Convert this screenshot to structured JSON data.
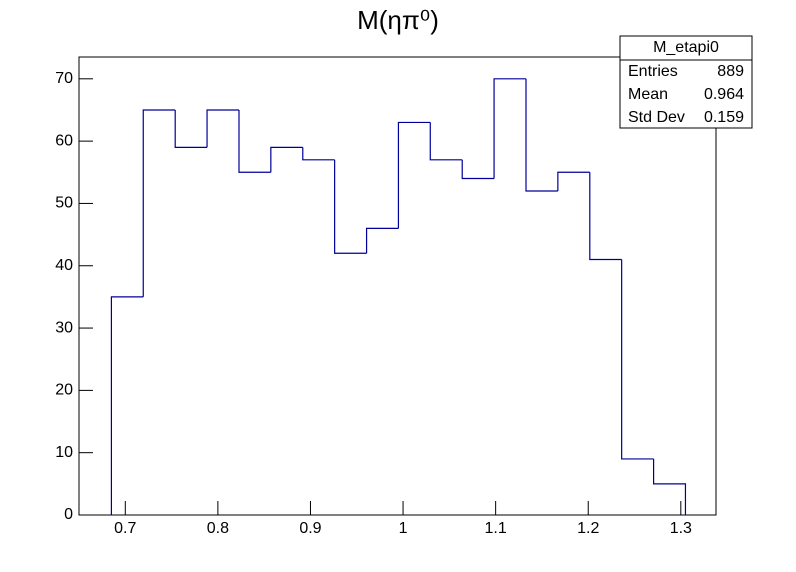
{
  "chart_data": {
    "type": "histogram",
    "title": "M(ηπ⁰)",
    "bins": [
      0.685,
      0.7194,
      0.7539,
      0.7883,
      0.8228,
      0.8572,
      0.8917,
      0.9261,
      0.9606,
      0.995,
      1.0294,
      1.0639,
      1.0983,
      1.1328,
      1.1672,
      1.2017,
      1.2361,
      1.2706,
      1.305
    ],
    "values": [
      35,
      65,
      59,
      65,
      55,
      59,
      57,
      42,
      46,
      63,
      57,
      54,
      70,
      52,
      55,
      41,
      9,
      5
    ],
    "color": "#000099",
    "xlim": [
      0.65,
      1.338
    ],
    "xticks": [
      0.7,
      0.8,
      0.9,
      1,
      1.1,
      1.2,
      1.3
    ],
    "ylim": [
      0,
      73.5
    ],
    "yticks": [
      0,
      10,
      20,
      30,
      40,
      50,
      60,
      70
    ],
    "stats": {
      "name": "M_etapi0",
      "rows": [
        [
          "Entries",
          889
        ],
        [
          "Mean",
          0.964
        ],
        [
          "Std Dev",
          0.159
        ]
      ]
    }
  }
}
